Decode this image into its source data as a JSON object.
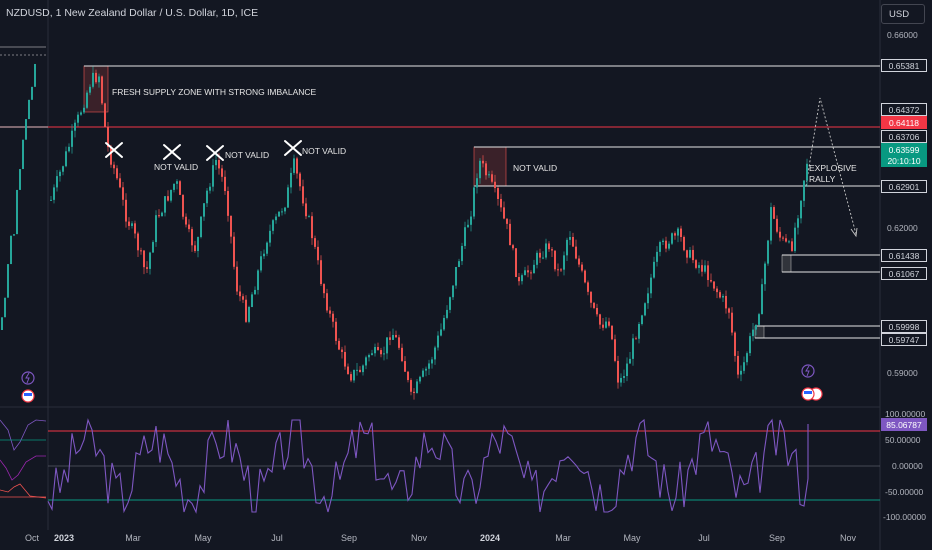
{
  "header": {
    "title": "NZDUSD, 1   New Zealand Dollar / U.S. Dollar, 1D, ICE",
    "currency_button": "USD"
  },
  "price_axis": {
    "labels": [
      "0.66000",
      "0.62000",
      "0.59000"
    ]
  },
  "price_boxes": {
    "p1": "0.65381",
    "p2": "0.64372",
    "p3_red": "0.64118",
    "p4": "0.63706",
    "p5_price": "0.63599",
    "p5_timer": "20:10:10",
    "p6": "0.62901",
    "p7": "0.61438",
    "p8": "0.61067",
    "p9": "0.59998",
    "p10": "0.59747"
  },
  "oscillator_axis": {
    "labels": [
      "100.00000",
      "50.00000",
      "0.00000",
      "-50.00000",
      "-100.00000"
    ],
    "current": "85.06787"
  },
  "annotations": {
    "supply_zone": "FRESH SUPPLY ZONE WITH STRONG IMBALANCE",
    "not_valid": "NOT VALID",
    "explosive_1": "EXPLOSIVE",
    "explosive_2": "RALLY"
  },
  "time_axis": [
    "Oct",
    "2023",
    "Mar",
    "May",
    "Jul",
    "Sep",
    "Nov",
    "2024",
    "Mar",
    "May",
    "Jul",
    "Sep",
    "Nov"
  ],
  "colors": {
    "bull": "#26a69a",
    "bear": "#ef5350",
    "oscillator": "#7e57c2",
    "resistance": "#f23645",
    "background": "#131722"
  }
}
